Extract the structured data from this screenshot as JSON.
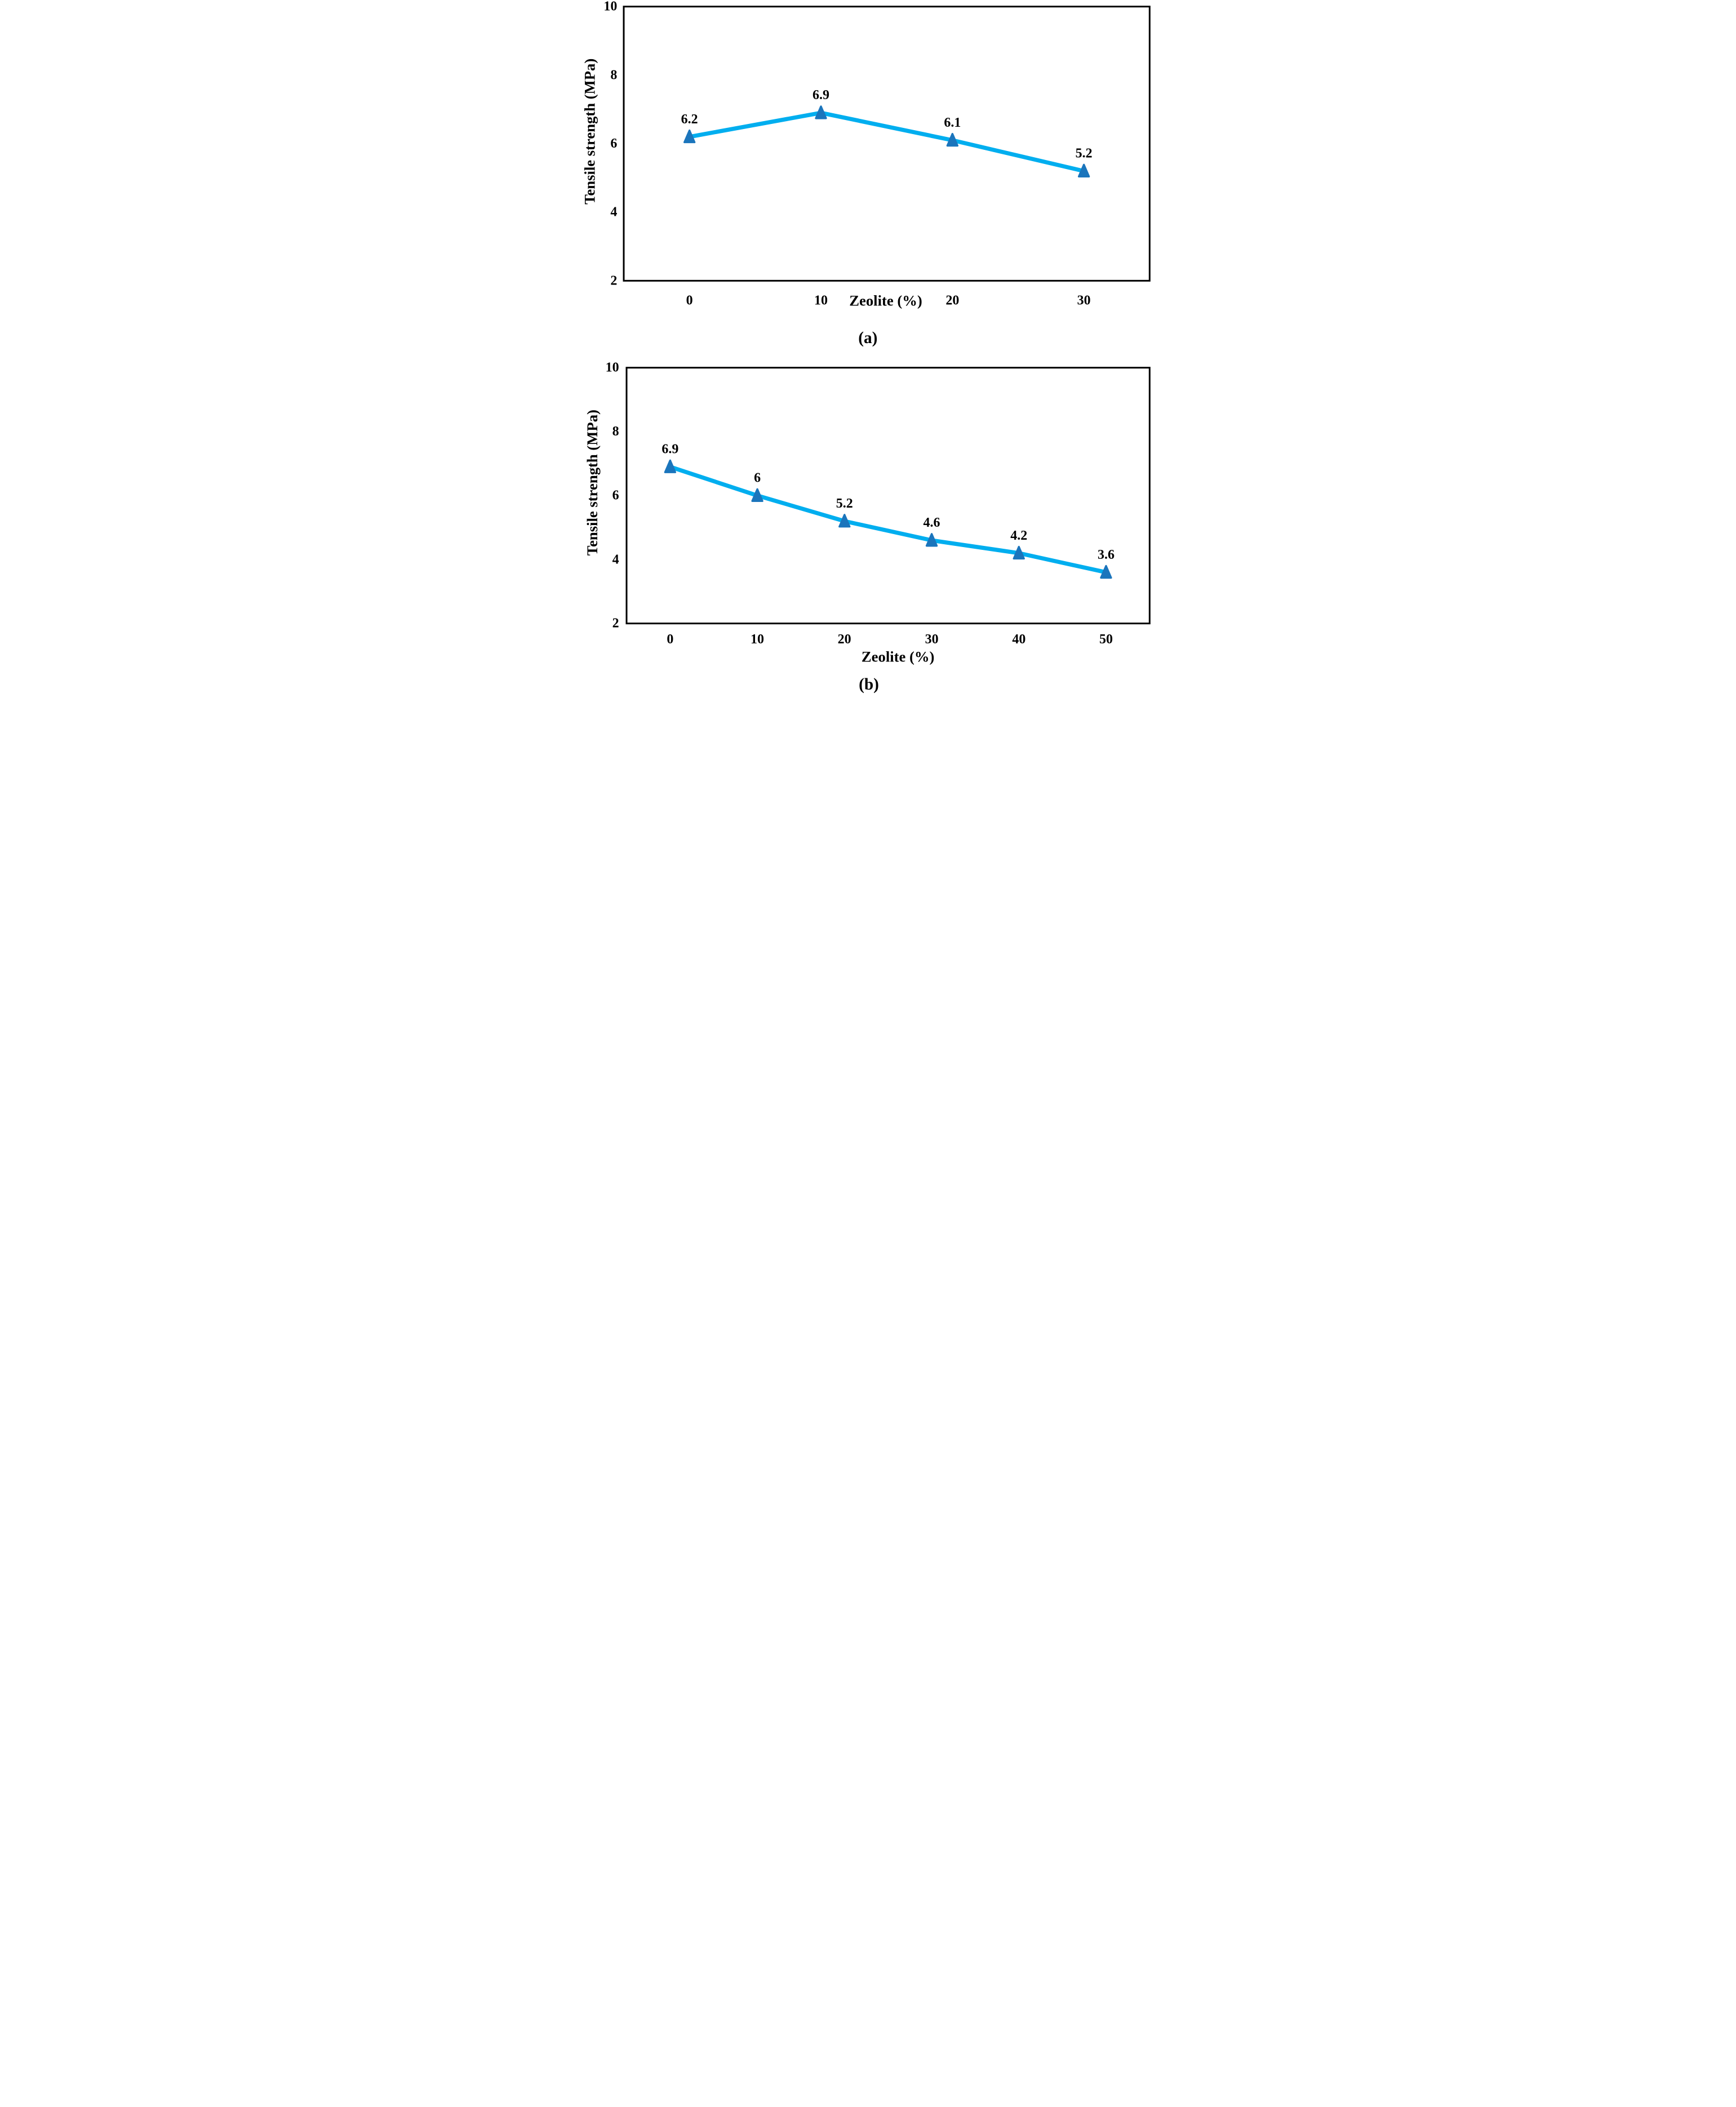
{
  "figure": {
    "background": "#ffffff",
    "line_color": "#00AEEF",
    "marker_color": "#1B75BC",
    "axis_color": "#000000"
  },
  "chart_data": [
    {
      "id": "a",
      "type": "line",
      "caption": "(a)",
      "xlabel": "Zeolite (%)",
      "ylabel": "Tensile strength (MPa)",
      "xlabel_position": "inline-with-x-tick-labels",
      "categories": [
        0,
        10,
        20,
        30
      ],
      "x_tick_labels": [
        "0",
        "10",
        "20",
        "30"
      ],
      "y_tick_labels": [
        "10",
        "8",
        "6",
        "4",
        "2"
      ],
      "ylim": [
        2,
        10
      ],
      "grid": false,
      "legend": "none",
      "marker": "triangle",
      "line_color": "#00AEEF",
      "marker_color": "#1B75BC",
      "series": [
        {
          "name": "Tensile strength",
          "values": [
            6.2,
            6.9,
            6.1,
            5.2
          ],
          "data_labels": [
            "6.2",
            "6.9",
            "6.1",
            "5.2"
          ]
        }
      ]
    },
    {
      "id": "b",
      "type": "line",
      "caption": "(b)",
      "xlabel": "Zeolite (%)",
      "ylabel": "Tensile strength (MPa)",
      "xlabel_position": "below-axis",
      "categories": [
        0,
        10,
        20,
        30,
        40,
        50
      ],
      "x_tick_labels": [
        "0",
        "10",
        "20",
        "30",
        "40",
        "50"
      ],
      "y_tick_labels": [
        "10",
        "8",
        "6",
        "4",
        "2"
      ],
      "ylim": [
        2,
        10
      ],
      "grid": false,
      "legend": "none",
      "marker": "triangle",
      "line_color": "#00AEEF",
      "marker_color": "#1B75BC",
      "series": [
        {
          "name": "Tensile strength",
          "values": [
            6.9,
            6,
            5.2,
            4.6,
            4.2,
            3.6
          ],
          "data_labels": [
            "6.9",
            "6",
            "5.2",
            "4.6",
            "4.2",
            "3.6"
          ]
        }
      ]
    }
  ]
}
